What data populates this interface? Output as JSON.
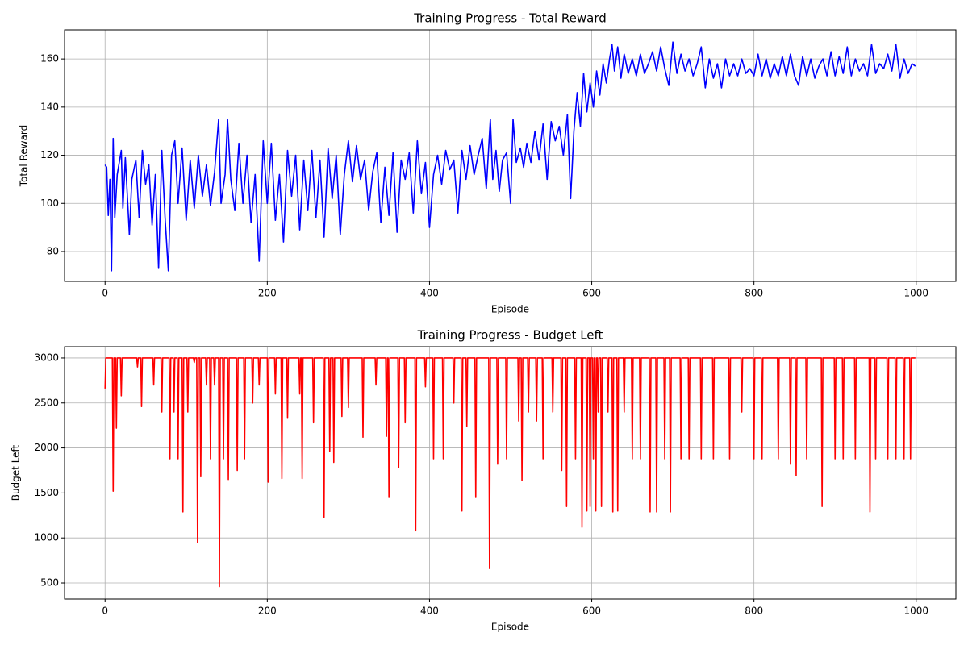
{
  "chart_data": [
    {
      "type": "line",
      "title": "Training Progress - Total Reward",
      "xlabel": "Episode",
      "ylabel": "Total Reward",
      "color": "#0000ff",
      "grid": true,
      "xlim": [
        -49.95,
        1048.95
      ],
      "xticks": [
        0,
        200,
        400,
        600,
        800,
        1000
      ],
      "ylim": [
        67.6,
        172.1
      ],
      "yticks": [
        80,
        100,
        120,
        140,
        160
      ],
      "x": [
        0,
        2,
        4,
        6,
        8,
        10,
        12,
        15,
        20,
        22,
        25,
        30,
        33,
        38,
        42,
        46,
        50,
        54,
        58,
        62,
        66,
        70,
        74,
        78,
        82,
        86,
        90,
        95,
        100,
        105,
        110,
        115,
        120,
        125,
        130,
        135,
        140,
        143,
        148,
        151,
        155,
        160,
        165,
        170,
        175,
        180,
        185,
        190,
        195,
        200,
        205,
        210,
        215,
        220,
        225,
        230,
        235,
        240,
        245,
        250,
        255,
        260,
        265,
        270,
        275,
        280,
        285,
        290,
        295,
        300,
        305,
        310,
        315,
        320,
        325,
        330,
        335,
        340,
        345,
        350,
        355,
        360,
        365,
        370,
        375,
        380,
        385,
        390,
        395,
        400,
        405,
        410,
        415,
        420,
        425,
        430,
        435,
        440,
        445,
        450,
        455,
        460,
        465,
        470,
        475,
        478,
        482,
        486,
        490,
        495,
        500,
        503,
        507,
        512,
        516,
        520,
        525,
        530,
        535,
        540,
        545,
        550,
        555,
        560,
        565,
        570,
        574,
        578,
        582,
        586,
        590,
        594,
        598,
        602,
        606,
        610,
        614,
        618,
        622,
        625,
        628,
        632,
        636,
        640,
        645,
        650,
        655,
        660,
        665,
        670,
        675,
        680,
        685,
        690,
        695,
        700,
        705,
        710,
        715,
        720,
        725,
        730,
        735,
        740,
        745,
        750,
        755,
        760,
        765,
        770,
        775,
        780,
        785,
        790,
        795,
        800,
        805,
        810,
        815,
        820,
        825,
        830,
        835,
        840,
        845,
        850,
        855,
        860,
        865,
        870,
        875,
        880,
        885,
        890,
        895,
        900,
        905,
        910,
        915,
        920,
        925,
        930,
        935,
        940,
        945,
        950,
        955,
        960,
        965,
        970,
        975,
        980,
        985,
        990,
        995,
        999
      ],
      "values": [
        116,
        115,
        95,
        110,
        72,
        127,
        94,
        112,
        122,
        98,
        119,
        87,
        110,
        118,
        94,
        122,
        108,
        116,
        91,
        112,
        73,
        122,
        94,
        72,
        120,
        126,
        100,
        123,
        93,
        118,
        98,
        120,
        103,
        116,
        99,
        113,
        135,
        100,
        112,
        135,
        110,
        97,
        125,
        100,
        120,
        92,
        112,
        76,
        126,
        100,
        125,
        93,
        112,
        84,
        122,
        103,
        120,
        89,
        118,
        97,
        122,
        94,
        118,
        86,
        123,
        102,
        120,
        87,
        112,
        126,
        109,
        124,
        110,
        118,
        97,
        113,
        121,
        92,
        115,
        95,
        121,
        88,
        118,
        110,
        121,
        96,
        126,
        104,
        117,
        90,
        112,
        120,
        108,
        122,
        114,
        118,
        96,
        122,
        110,
        124,
        112,
        120,
        127,
        106,
        135,
        110,
        122,
        105,
        118,
        121,
        100,
        135,
        117,
        123,
        115,
        125,
        117,
        130,
        118,
        133,
        110,
        134,
        126,
        132,
        120,
        137,
        102,
        130,
        146,
        132,
        154,
        138,
        150,
        140,
        155,
        145,
        158,
        150,
        160,
        166,
        155,
        165,
        152,
        162,
        154,
        160,
        153,
        162,
        154,
        158,
        163,
        155,
        165,
        156,
        149,
        167,
        154,
        162,
        155,
        160,
        153,
        158,
        165,
        148,
        160,
        152,
        158,
        148,
        160,
        153,
        158,
        153,
        160,
        154,
        156,
        153,
        162,
        153,
        160,
        152,
        158,
        153,
        161,
        153,
        162,
        153,
        149,
        161,
        153,
        160,
        152,
        157,
        160,
        153,
        163,
        153,
        161,
        154,
        165,
        153,
        160,
        155,
        158,
        153,
        166,
        154,
        158,
        156,
        162,
        155,
        166,
        152,
        160,
        154,
        158,
        157
      ]
    },
    {
      "type": "line",
      "title": "Training Progress - Budget Left",
      "xlabel": "Episode",
      "ylabel": "Budget Left",
      "color": "#ff0000",
      "grid": true,
      "xlim": [
        -49.95,
        1048.95
      ],
      "xticks": [
        0,
        200,
        400,
        600,
        800,
        1000
      ],
      "ylim": [
        321,
        3125
      ],
      "yticks": [
        500,
        1000,
        1500,
        2000,
        2500,
        3000
      ],
      "x": [
        0,
        1,
        9,
        10,
        11,
        13,
        14,
        15,
        19,
        20,
        21,
        39,
        40,
        41,
        44,
        45,
        46,
        59,
        60,
        61,
        69,
        70,
        71,
        79,
        80,
        81,
        84,
        85,
        86,
        89,
        90,
        91,
        95,
        96,
        97,
        101,
        102,
        103,
        109,
        110,
        111,
        113,
        114,
        115,
        117,
        118,
        119,
        124,
        125,
        126,
        129,
        130,
        131,
        134,
        135,
        136,
        140,
        141,
        142,
        145,
        146,
        147,
        151,
        152,
        153,
        162,
        163,
        164,
        171,
        172,
        173,
        181,
        182,
        183,
        189,
        190,
        191,
        200,
        201,
        202,
        209,
        210,
        211,
        217,
        218,
        219,
        224,
        225,
        226,
        239,
        240,
        241,
        242,
        243,
        244,
        256,
        257,
        258,
        269,
        270,
        271,
        276,
        277,
        278,
        281,
        282,
        283,
        291,
        292,
        293,
        299,
        300,
        301,
        317,
        318,
        319,
        333,
        334,
        335,
        346,
        347,
        348,
        349,
        350,
        351,
        361,
        362,
        363,
        369,
        370,
        371,
        382,
        383,
        384,
        394,
        395,
        396,
        404,
        405,
        406,
        416,
        417,
        418,
        429,
        430,
        431,
        439,
        440,
        441,
        445,
        446,
        447,
        456,
        457,
        458,
        473,
        474,
        475,
        483,
        484,
        485,
        494,
        495,
        496,
        509,
        510,
        511,
        513,
        514,
        515,
        521,
        522,
        523,
        531,
        532,
        533,
        539,
        540,
        541,
        551,
        552,
        553,
        562,
        563,
        564,
        568,
        569,
        570,
        579,
        580,
        581,
        587,
        588,
        589,
        593,
        594,
        595,
        597,
        598,
        599,
        601,
        602,
        603,
        604,
        605,
        606,
        607,
        608,
        609,
        611,
        612,
        613,
        619,
        620,
        621,
        625,
        626,
        627,
        631,
        632,
        633,
        639,
        640,
        641,
        649,
        650,
        651,
        659,
        660,
        661,
        671,
        672,
        673,
        679,
        680,
        681,
        689,
        690,
        691,
        696,
        697,
        698,
        709,
        710,
        711,
        719,
        720,
        721,
        734,
        735,
        736,
        749,
        750,
        751,
        769,
        770,
        771,
        784,
        785,
        786,
        799,
        800,
        801,
        809,
        810,
        811,
        829,
        830,
        831,
        844,
        845,
        846,
        851,
        852,
        853,
        864,
        865,
        866,
        883,
        884,
        885,
        899,
        900,
        901,
        909,
        910,
        911,
        924,
        925,
        926,
        942,
        943,
        944,
        949,
        950,
        951,
        964,
        965,
        966,
        974,
        975,
        976,
        984,
        985,
        986,
        992,
        993,
        994,
        999
      ],
      "values": [
        2660,
        3000,
        3000,
        1520,
        3000,
        3000,
        2220,
        3000,
        3000,
        2580,
        3000,
        3000,
        2900,
        3000,
        3000,
        2460,
        3000,
        3000,
        2700,
        3000,
        3000,
        2400,
        3000,
        3000,
        1880,
        3000,
        3000,
        2400,
        3000,
        3000,
        1880,
        3000,
        3000,
        1290,
        3000,
        3000,
        2400,
        3000,
        3000,
        2950,
        3000,
        3000,
        950,
        3000,
        3000,
        1680,
        3000,
        3000,
        2700,
        3000,
        3000,
        1880,
        3000,
        3000,
        2700,
        3000,
        3000,
        460,
        3000,
        3000,
        1880,
        3000,
        3000,
        1650,
        3000,
        3000,
        1750,
        3000,
        3000,
        1880,
        3000,
        3000,
        2500,
        3000,
        3000,
        2700,
        3000,
        3000,
        1620,
        3000,
        3000,
        2600,
        3000,
        3000,
        1660,
        3000,
        3000,
        2330,
        3000,
        3000,
        2600,
        3000,
        3000,
        1660,
        3000,
        3000,
        2280,
        3000,
        3000,
        1230,
        3000,
        3000,
        1960,
        3000,
        3000,
        1840,
        3000,
        3000,
        2350,
        3000,
        3000,
        2450,
        3000,
        3000,
        2120,
        3000,
        3000,
        2700,
        3000,
        3000,
        2130,
        3000,
        3000,
        1450,
        3000,
        3000,
        1780,
        3000,
        3000,
        2280,
        3000,
        3000,
        1080,
        3000,
        3000,
        2680,
        3000,
        3000,
        1880,
        3000,
        3000,
        1880,
        3000,
        3000,
        2500,
        3000,
        3000,
        1300,
        3000,
        3000,
        2240,
        3000,
        3000,
        1450,
        3000,
        3000,
        660,
        3000,
        3000,
        1820,
        3000,
        3000,
        1880,
        3000,
        3000,
        2300,
        3000,
        3000,
        1640,
        3000,
        3000,
        2400,
        3000,
        3000,
        2300,
        3000,
        3000,
        1880,
        3000,
        3000,
        2400,
        3000,
        3000,
        1750,
        3000,
        3000,
        1350,
        3000,
        3000,
        1880,
        3000,
        3000,
        1120,
        3000,
        3000,
        1300,
        3000,
        3000,
        1350,
        3000,
        3000,
        1880,
        3000,
        3000,
        1300,
        3000,
        3000,
        2400,
        3000,
        3000,
        1350,
        3000,
        3000,
        2400,
        3000,
        3000,
        1290,
        3000,
        3000,
        1300,
        3000,
        3000,
        2400,
        3000,
        3000,
        1880,
        3000,
        3000,
        1880,
        3000,
        3000,
        1290,
        3000,
        3000,
        1290,
        3000,
        3000,
        1880,
        3000,
        3000,
        1290,
        3000,
        3000,
        1880,
        3000,
        3000,
        1880,
        3000,
        3000,
        1880,
        3000,
        3000,
        1880,
        3000,
        3000,
        1880,
        3000,
        3000,
        2400,
        3000,
        3000,
        1880,
        3000,
        3000,
        1880,
        3000,
        3000,
        1880,
        3000,
        3000,
        1820,
        3000,
        3000,
        1690,
        3000,
        3000,
        1880,
        3000,
        3000,
        1350,
        3000,
        3000,
        1880,
        3000,
        3000,
        1880,
        3000,
        3000,
        1880,
        3000,
        3000,
        1290,
        3000,
        3000,
        1880,
        3000,
        3000,
        1880,
        3000,
        3000,
        1880,
        3000,
        3000,
        1880,
        3000,
        3000,
        1880,
        3000,
        3000
      ]
    }
  ]
}
